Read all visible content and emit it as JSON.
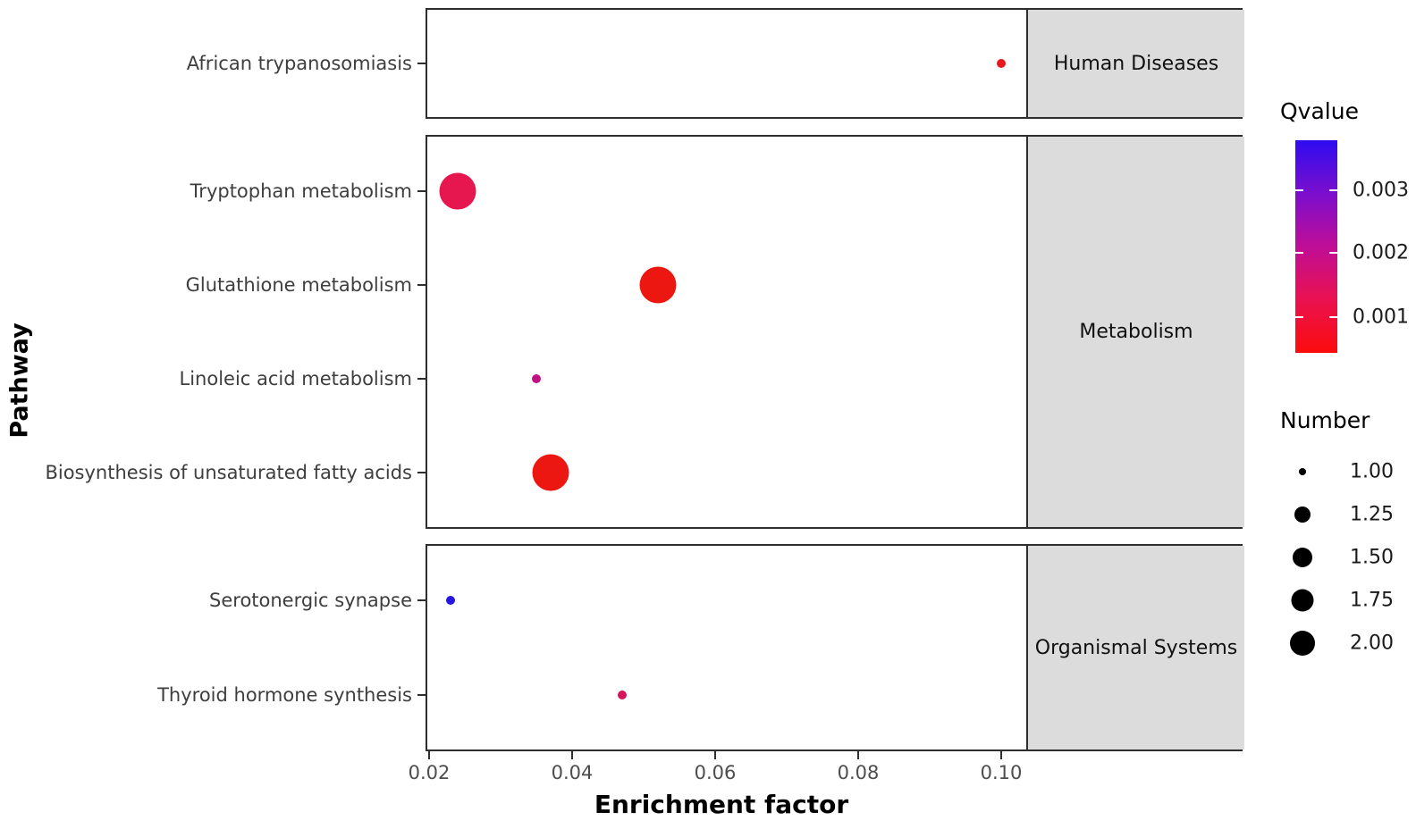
{
  "chart_data": {
    "type": "scatter",
    "title": "",
    "xlabel": "Enrichment factor",
    "ylabel": "Pathway",
    "x_axis": {
      "tick_labels": [
        "0.02",
        "0.04",
        "0.06",
        "0.08",
        "0.10"
      ],
      "tick_values": [
        0.02,
        0.04,
        0.06,
        0.08,
        0.1
      ],
      "range": [
        0.019,
        0.1035
      ]
    },
    "facets": [
      {
        "label": "Human Diseases",
        "rows": [
          {
            "pathway": "African trypanosomiasis",
            "enrichment_factor": 0.1,
            "qvalue": 0.0007,
            "number": 1,
            "color": "#e8191c"
          }
        ]
      },
      {
        "label": "Metabolism",
        "rows": [
          {
            "pathway": "Tryptophan metabolism",
            "enrichment_factor": 0.024,
            "qvalue": 0.0012,
            "number": 2,
            "color": "#e6164e"
          },
          {
            "pathway": "Glutathione metabolism",
            "enrichment_factor": 0.052,
            "qvalue": 0.0006,
            "number": 2,
            "color": "#ec1710"
          },
          {
            "pathway": "Linoleic acid metabolism",
            "enrichment_factor": 0.035,
            "qvalue": 0.0023,
            "number": 1,
            "color": "#c01082"
          },
          {
            "pathway": "Biosynthesis of unsaturated fatty acids",
            "enrichment_factor": 0.037,
            "qvalue": 0.0006,
            "number": 2,
            "color": "#ec1710"
          }
        ]
      },
      {
        "label": "Organismal Systems",
        "rows": [
          {
            "pathway": "Serotonergic synapse",
            "enrichment_factor": 0.023,
            "qvalue": 0.0036,
            "number": 1,
            "color": "#2517e0"
          },
          {
            "pathway": "Thyroid hormone synthesis",
            "enrichment_factor": 0.047,
            "qvalue": 0.0014,
            "number": 1,
            "color": "#d6145c"
          }
        ]
      }
    ],
    "legend_qvalue": {
      "title": "Qvalue",
      "tick_labels": [
        "0.003",
        "0.002",
        "0.001"
      ],
      "gradient_top_to_bottom": [
        "#2e0cf0",
        "#7b0ecd",
        "#bf0e96",
        "#ea1150",
        "#fb0c0c"
      ]
    },
    "legend_number": {
      "title": "Number",
      "items": [
        "1.00",
        "1.25",
        "1.50",
        "1.75",
        "2.00"
      ]
    },
    "layout_hints": {
      "facet_strip_position": "right",
      "legend_position": "right",
      "grid": "off",
      "panel_background": "#ffffff",
      "strip_background": "#dcdcdc"
    }
  }
}
